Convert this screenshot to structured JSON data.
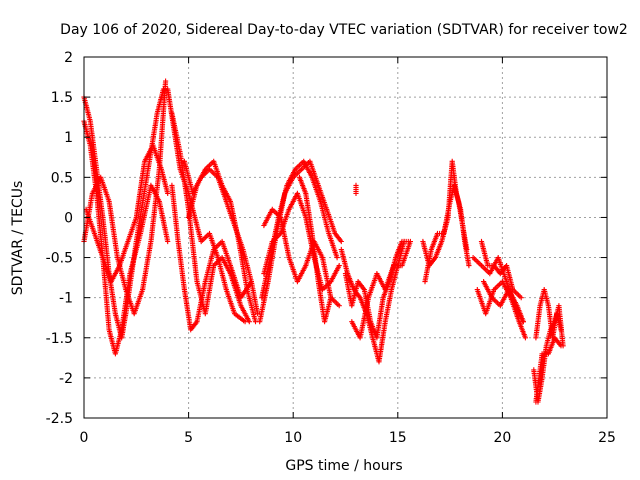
{
  "chart_data": {
    "type": "scatter",
    "title": "Day 106 of 2020, Sidereal Day-to-day VTEC variation (SDTVAR) for receiver tow2",
    "xlabel": "GPS time / hours",
    "ylabel": "SDTVAR / TECUs",
    "xlim": [
      0,
      25
    ],
    "ylim": [
      -2.5,
      2
    ],
    "xticks": [
      "0",
      "5",
      "10",
      "15",
      "20",
      "25"
    ],
    "yticks": [
      "2",
      "1.5",
      "1",
      "0.5",
      "0",
      "-0.5",
      "-1",
      "-1.5",
      "-2",
      "-2.5"
    ],
    "grid": true,
    "marker": "+",
    "series": [
      {
        "name": "SDTVAR",
        "color": "#ff0000",
        "tracks": [
          [
            [
              0.0,
              1.5
            ],
            [
              0.3,
              1.2
            ],
            [
              0.6,
              0.6
            ],
            [
              0.9,
              0.0
            ],
            [
              1.2,
              -0.7
            ],
            [
              1.5,
              -1.2
            ],
            [
              1.8,
              -1.5
            ],
            [
              2.0,
              -1.2
            ],
            [
              2.5,
              -0.3
            ],
            [
              3.0,
              0.5
            ],
            [
              3.5,
              1.3
            ],
            [
              3.8,
              1.6
            ]
          ],
          [
            [
              0.0,
              1.2
            ],
            [
              0.3,
              0.9
            ],
            [
              0.6,
              0.3
            ],
            [
              0.9,
              -0.5
            ],
            [
              1.2,
              -1.4
            ],
            [
              1.5,
              -1.7
            ],
            [
              1.8,
              -1.4
            ],
            [
              2.2,
              -0.7
            ],
            [
              2.7,
              -0.2
            ],
            [
              3.2,
              0.4
            ],
            [
              3.6,
              0.2
            ],
            [
              4.0,
              -0.3
            ]
          ],
          [
            [
              0.0,
              -0.3
            ],
            [
              0.4,
              0.3
            ],
            [
              0.8,
              0.5
            ],
            [
              1.2,
              0.2
            ],
            [
              1.6,
              -0.5
            ],
            [
              2.0,
              -0.9
            ],
            [
              2.4,
              -1.2
            ],
            [
              2.8,
              -0.9
            ],
            [
              3.2,
              -0.3
            ],
            [
              3.6,
              0.6
            ],
            [
              3.9,
              1.7
            ]
          ],
          [
            [
              0.1,
              0.1
            ],
            [
              0.5,
              -0.2
            ],
            [
              0.9,
              -0.5
            ],
            [
              1.3,
              -0.8
            ],
            [
              1.7,
              -0.6
            ],
            [
              2.1,
              -0.3
            ],
            [
              2.5,
              0.0
            ],
            [
              2.9,
              0.7
            ],
            [
              3.3,
              0.9
            ],
            [
              3.7,
              0.6
            ],
            [
              4.0,
              0.3
            ]
          ],
          [
            [
              4.0,
              1.6
            ],
            [
              4.3,
              1.1
            ],
            [
              4.6,
              0.6
            ],
            [
              5.0,
              0.3
            ],
            [
              5.3,
              0.0
            ],
            [
              5.6,
              -0.3
            ],
            [
              6.0,
              -0.2
            ],
            [
              6.4,
              -0.5
            ],
            [
              6.8,
              -0.9
            ],
            [
              7.2,
              -1.2
            ],
            [
              7.7,
              -1.3
            ]
          ],
          [
            [
              4.2,
              1.3
            ],
            [
              4.6,
              0.8
            ],
            [
              5.0,
              0.1
            ],
            [
              5.4,
              -0.8
            ],
            [
              5.8,
              -1.2
            ],
            [
              6.2,
              -0.6
            ],
            [
              6.6,
              -0.5
            ],
            [
              7.0,
              -0.7
            ],
            [
              7.5,
              -1.1
            ],
            [
              7.9,
              -1.3
            ]
          ],
          [
            [
              4.2,
              0.4
            ],
            [
              4.5,
              -0.3
            ],
            [
              4.8,
              -0.9
            ],
            [
              5.1,
              -1.4
            ],
            [
              5.4,
              -1.3
            ],
            [
              5.8,
              -0.8
            ],
            [
              6.2,
              -0.4
            ],
            [
              6.6,
              -0.3
            ],
            [
              7.0,
              -0.6
            ],
            [
              7.5,
              -1.0
            ],
            [
              8.0,
              -0.8
            ]
          ],
          [
            [
              4.8,
              0.7
            ],
            [
              5.2,
              0.3
            ],
            [
              5.6,
              0.5
            ],
            [
              6.0,
              0.6
            ],
            [
              6.4,
              0.5
            ],
            [
              6.8,
              0.2
            ],
            [
              7.2,
              -0.1
            ],
            [
              7.6,
              -0.4
            ],
            [
              8.0,
              -0.8
            ],
            [
              8.3,
              -1.2
            ]
          ],
          [
            [
              5.0,
              0.0
            ],
            [
              5.4,
              0.4
            ],
            [
              5.8,
              0.6
            ],
            [
              6.2,
              0.7
            ],
            [
              6.6,
              0.4
            ],
            [
              7.0,
              0.2
            ],
            [
              7.4,
              -0.3
            ],
            [
              7.8,
              -0.9
            ],
            [
              8.2,
              -1.3
            ]
          ],
          [
            [
              8.4,
              -1.3
            ],
            [
              8.8,
              -0.8
            ],
            [
              9.2,
              -0.2
            ],
            [
              9.6,
              0.3
            ],
            [
              10.0,
              0.5
            ],
            [
              10.4,
              0.6
            ],
            [
              10.8,
              0.7
            ],
            [
              11.2,
              0.4
            ],
            [
              11.6,
              0.1
            ],
            [
              12.0,
              -0.2
            ],
            [
              12.3,
              -0.3
            ]
          ],
          [
            [
              8.5,
              -1.0
            ],
            [
              8.9,
              -0.5
            ],
            [
              9.3,
              0.0
            ],
            [
              9.7,
              0.4
            ],
            [
              10.1,
              0.6
            ],
            [
              10.5,
              0.7
            ],
            [
              10.9,
              0.5
            ],
            [
              11.3,
              0.2
            ],
            [
              11.7,
              -0.2
            ],
            [
              12.1,
              -0.5
            ]
          ],
          [
            [
              8.6,
              -0.7
            ],
            [
              9.0,
              -0.3
            ],
            [
              9.4,
              -0.2
            ],
            [
              9.8,
              0.1
            ],
            [
              10.2,
              0.3
            ],
            [
              10.6,
              0.0
            ],
            [
              11.0,
              -0.5
            ],
            [
              11.4,
              -0.9
            ],
            [
              11.8,
              -0.8
            ],
            [
              12.2,
              -0.6
            ]
          ],
          [
            [
              8.6,
              -0.1
            ],
            [
              9.0,
              0.1
            ],
            [
              9.4,
              0.0
            ],
            [
              9.8,
              -0.5
            ],
            [
              10.2,
              -0.8
            ],
            [
              10.6,
              -0.6
            ],
            [
              11.0,
              -0.3
            ],
            [
              11.4,
              -0.5
            ],
            [
              11.8,
              -1.0
            ],
            [
              12.2,
              -1.1
            ]
          ],
          [
            [
              10.3,
              0.5
            ],
            [
              10.6,
              0.3
            ],
            [
              10.9,
              -0.2
            ],
            [
              11.2,
              -0.8
            ],
            [
              11.5,
              -1.3
            ],
            [
              11.8,
              -1.0
            ]
          ],
          [
            [
              12.3,
              -0.4
            ],
            [
              12.6,
              -0.7
            ],
            [
              12.9,
              -0.9
            ],
            [
              13.2,
              -1.0
            ],
            [
              13.5,
              -1.2
            ],
            [
              13.8,
              -1.5
            ],
            [
              14.1,
              -1.8
            ],
            [
              14.4,
              -1.3
            ],
            [
              14.7,
              -0.9
            ],
            [
              15.0,
              -0.6
            ],
            [
              15.3,
              -0.3
            ]
          ],
          [
            [
              12.5,
              -0.7
            ],
            [
              12.8,
              -1.1
            ],
            [
              13.1,
              -0.8
            ],
            [
              13.4,
              -0.9
            ],
            [
              13.7,
              -1.3
            ],
            [
              14.0,
              -1.5
            ],
            [
              14.3,
              -1.0
            ],
            [
              14.6,
              -0.8
            ],
            [
              14.9,
              -0.5
            ],
            [
              15.2,
              -0.3
            ],
            [
              15.5,
              -0.3
            ]
          ],
          [
            [
              13.0,
              0.3
            ],
            [
              13.0,
              0.4
            ]
          ],
          [
            [
              12.8,
              -1.3
            ],
            [
              13.2,
              -1.5
            ],
            [
              13.6,
              -1.0
            ],
            [
              14.0,
              -0.7
            ],
            [
              14.4,
              -0.9
            ],
            [
              14.8,
              -0.6
            ],
            [
              15.2,
              -0.6
            ],
            [
              15.6,
              -0.3
            ]
          ],
          [
            [
              16.2,
              -0.3
            ],
            [
              16.5,
              -0.6
            ],
            [
              16.8,
              -0.5
            ],
            [
              17.1,
              -0.3
            ],
            [
              17.4,
              0.0
            ],
            [
              17.6,
              0.7
            ],
            [
              17.8,
              0.3
            ],
            [
              18.0,
              0.1
            ],
            [
              18.2,
              -0.3
            ],
            [
              18.4,
              -0.6
            ]
          ],
          [
            [
              16.3,
              -0.8
            ],
            [
              16.6,
              -0.4
            ],
            [
              16.9,
              -0.2
            ],
            [
              17.2,
              -0.2
            ],
            [
              17.5,
              0.2
            ],
            [
              17.7,
              0.4
            ],
            [
              17.9,
              0.2
            ],
            [
              18.1,
              -0.1
            ],
            [
              18.3,
              -0.4
            ]
          ],
          [
            [
              18.6,
              -0.5
            ],
            [
              19.0,
              -0.6
            ],
            [
              19.4,
              -0.7
            ],
            [
              19.8,
              -0.5
            ],
            [
              20.2,
              -0.8
            ],
            [
              20.6,
              -1.1
            ],
            [
              21.0,
              -1.3
            ]
          ],
          [
            [
              18.8,
              -0.9
            ],
            [
              19.2,
              -1.2
            ],
            [
              19.6,
              -0.9
            ],
            [
              20.0,
              -0.8
            ],
            [
              20.4,
              -1.0
            ],
            [
              20.8,
              -1.3
            ],
            [
              21.1,
              -1.5
            ]
          ],
          [
            [
              19.0,
              -0.3
            ],
            [
              19.3,
              -0.6
            ],
            [
              19.6,
              -0.6
            ],
            [
              19.9,
              -0.7
            ],
            [
              20.2,
              -0.6
            ],
            [
              20.5,
              -0.9
            ],
            [
              20.9,
              -1.0
            ]
          ],
          [
            [
              19.1,
              -0.8
            ],
            [
              19.5,
              -1.0
            ],
            [
              19.9,
              -1.1
            ],
            [
              20.3,
              -0.9
            ],
            [
              20.7,
              -1.1
            ],
            [
              21.0,
              -1.3
            ]
          ],
          [
            [
              21.5,
              -1.9
            ],
            [
              21.7,
              -2.3
            ],
            [
              21.9,
              -2.0
            ],
            [
              22.1,
              -1.6
            ],
            [
              22.3,
              -1.4
            ],
            [
              22.5,
              -1.3
            ],
            [
              22.7,
              -1.1
            ],
            [
              22.9,
              -1.6
            ]
          ],
          [
            [
              21.6,
              -1.5
            ],
            [
              21.8,
              -1.1
            ],
            [
              22.0,
              -0.9
            ],
            [
              22.2,
              -1.1
            ],
            [
              22.4,
              -1.5
            ],
            [
              22.6,
              -1.2
            ],
            [
              22.8,
              -1.4
            ]
          ],
          [
            [
              21.6,
              -2.3
            ],
            [
              21.9,
              -1.7
            ],
            [
              22.2,
              -1.7
            ],
            [
              22.5,
              -1.5
            ],
            [
              22.8,
              -1.6
            ]
          ]
        ]
      }
    ]
  }
}
